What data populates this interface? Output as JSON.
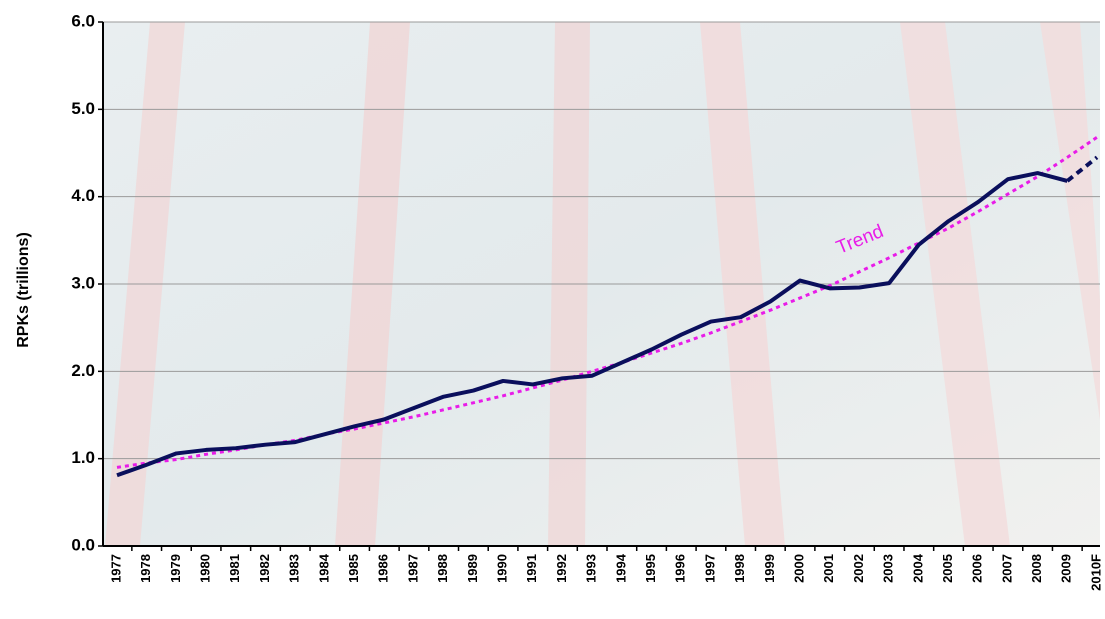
{
  "chart_data": {
    "type": "line",
    "y_label": "RPKs (trillions)",
    "categories": [
      "1977",
      "1978",
      "1979",
      "1980",
      "1981",
      "1982",
      "1983",
      "1984",
      "1985",
      "1986",
      "1987",
      "1988",
      "1989",
      "1990",
      "1991",
      "1992",
      "1993",
      "1994",
      "1995",
      "1996",
      "1997",
      "1998",
      "1999",
      "2000",
      "2001",
      "2002",
      "2003",
      "2004",
      "2005",
      "2006",
      "2007",
      "2008",
      "2009",
      "2010F"
    ],
    "series": [
      {
        "color": "#0a0f5c",
        "style": "solid",
        "values": [
          0.81,
          0.93,
          1.06,
          1.1,
          1.12,
          1.16,
          1.19,
          1.28,
          1.37,
          1.45,
          1.58,
          1.71,
          1.78,
          1.89,
          1.85,
          1.92,
          1.95,
          2.1,
          2.25,
          2.42,
          2.57,
          2.62,
          2.8,
          3.04,
          2.95,
          2.96,
          3.01,
          3.45,
          3.72,
          3.94,
          4.2,
          4.27,
          4.18,
          null
        ]
      },
      {
        "color": "#0a0f5c",
        "style": "dashed",
        "values": [
          null,
          null,
          null,
          null,
          null,
          null,
          null,
          null,
          null,
          null,
          null,
          null,
          null,
          null,
          null,
          null,
          null,
          null,
          null,
          null,
          null,
          null,
          null,
          null,
          null,
          null,
          null,
          null,
          null,
          null,
          null,
          null,
          4.18,
          4.45
        ]
      },
      {
        "color": "#e81ce8",
        "style": "dotted",
        "values": [
          0.9,
          0.95,
          0.99,
          1.05,
          1.1,
          1.16,
          1.21,
          1.28,
          1.34,
          1.41,
          1.48,
          1.56,
          1.64,
          1.72,
          1.81,
          1.9,
          2.0,
          2.1,
          2.21,
          2.32,
          2.44,
          2.57,
          2.7,
          2.84,
          2.98,
          3.14,
          3.3,
          3.47,
          3.64,
          3.83,
          4.03,
          4.23,
          4.45,
          4.68
        ]
      }
    ],
    "annotation": {
      "text": "Trend",
      "color": "#e81ce8"
    },
    "ylim": [
      0,
      6
    ],
    "yticks": [
      {
        "value": 0,
        "label": "0.0"
      },
      {
        "value": 1,
        "label": "1.0"
      },
      {
        "value": 2,
        "label": "2.0"
      },
      {
        "value": 3,
        "label": "3.0"
      },
      {
        "value": 4,
        "label": "4.0"
      },
      {
        "value": 5,
        "label": "5.0"
      },
      {
        "value": 6,
        "label": "6.0"
      }
    ],
    "grid": true
  }
}
